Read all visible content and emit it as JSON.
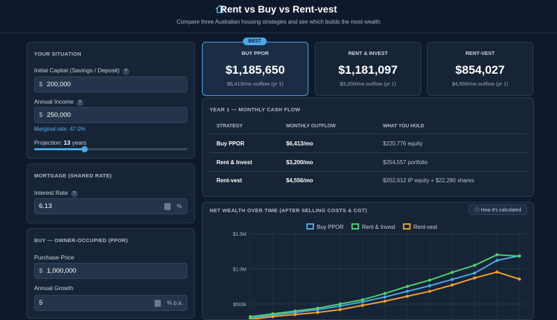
{
  "header": {
    "title": "Rent vs Buy vs Rent-vest",
    "subtitle": "Compare three Australian housing strategies and see which builds the most wealth"
  },
  "help_icon": "?",
  "currency": "$",
  "situation": {
    "heading": "YOUR SITUATION",
    "capital_label": "Initial Capital (Savings / Deposit)",
    "capital_value": "200,000",
    "income_label": "Annual Income",
    "income_value": "250,000",
    "marginal_rate": "Marginal rate: 47.0%",
    "projection_label": "Projection:",
    "projection_years": 13,
    "projection_unit": "years"
  },
  "mortgage": {
    "heading": "MORTGAGE (SHARED RATE)",
    "rate_label": "Interest Rate",
    "rate_value": "6.13",
    "rate_unit": "%"
  },
  "ppor": {
    "heading": "BUY — OWNER-OCCUPIED (PPOR)",
    "price_label": "Purchase Price",
    "price_value": "1,000,000",
    "growth_label": "Annual Growth",
    "growth_value": "5",
    "growth_unit": "% p.a."
  },
  "best_badge": "BEST",
  "cards": [
    {
      "label": "BUY PPOR",
      "value": "$1,185,650",
      "outflow": "$6,413/mo outflow (yr 1)"
    },
    {
      "label": "RENT & INVEST",
      "value": "$1,181,097",
      "outflow": "$3,200/mo outflow (yr 1)"
    },
    {
      "label": "RENT-VEST",
      "value": "$854,027",
      "outflow": "$4,556/mo outflow (yr 1)"
    }
  ],
  "cashflow": {
    "title": "YEAR 1 — MONTHLY CASH FLOW",
    "columns": [
      "STRATEGY",
      "MONTHLY OUTFLOW",
      "WHAT YOU HOLD"
    ],
    "rows": [
      [
        "Buy PPOR",
        "$6,413/mo",
        "$220,776 equity"
      ],
      [
        "Rent & Invest",
        "$3,200/mo",
        "$254,557 portfolio"
      ],
      [
        "Rent-vest",
        "$4,556/mo",
        "$202,612 IP equity + $22,280 shares"
      ]
    ]
  },
  "chart": {
    "type": "line",
    "title": "NET WEALTH OVER TIME (AFTER SELLING COSTS & CGT)",
    "button": "ⓘ How it's calculated",
    "categories": [
      null,
      null,
      null,
      null,
      null,
      null,
      null,
      null,
      null,
      null,
      null,
      null,
      null
    ],
    "series": [
      {
        "name": "Buy PPOR",
        "color": "#4aa8e8",
        "values": [
          300000,
          340000,
          380000,
          420000,
          470000,
          530000,
          600000,
          680000,
          760000,
          850000,
          940000,
          1120000,
          1185650
        ]
      },
      {
        "name": "Rent & Invest",
        "color": "#4fd16f",
        "values": [
          320000,
          360000,
          400000,
          440000,
          500000,
          560000,
          650000,
          750000,
          840000,
          950000,
          1050000,
          1200000,
          1181097
        ]
      },
      {
        "name": "Rent-vest",
        "color": "#f0a030",
        "values": [
          280000,
          320000,
          350000,
          380000,
          420000,
          480000,
          540000,
          610000,
          680000,
          770000,
          870000,
          955000,
          854027
        ]
      }
    ],
    "ylim": [
      0,
      1500000
    ],
    "yticks": [
      {
        "value": 500000,
        "label": "$500k"
      },
      {
        "value": 1000000,
        "label": "$1.0M"
      },
      {
        "value": 1500000,
        "label": "$1.5M"
      }
    ],
    "grid": true
  }
}
